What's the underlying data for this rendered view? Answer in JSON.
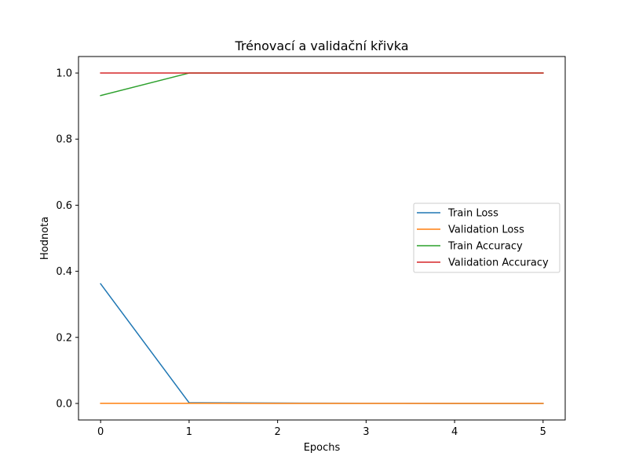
{
  "chart_data": {
    "type": "line",
    "title": "Trénovací a validační křivka",
    "xlabel": "Epochs",
    "ylabel": "Hodnota",
    "x": [
      0,
      1,
      2,
      3,
      4,
      5
    ],
    "xlim": [
      -0.25,
      5.25
    ],
    "ylim": [
      -0.05,
      1.05
    ],
    "xticks": [
      0,
      1,
      2,
      3,
      4,
      5
    ],
    "yticks": [
      0.0,
      0.2,
      0.4,
      0.6,
      0.8,
      1.0
    ],
    "xtick_labels": [
      "0",
      "1",
      "2",
      "3",
      "4",
      "5"
    ],
    "ytick_labels": [
      "0.0",
      "0.2",
      "0.4",
      "0.6",
      "0.8",
      "1.0"
    ],
    "grid": false,
    "legend_position": "center-right",
    "series": [
      {
        "name": "Train Loss",
        "color": "#1f77b4",
        "values": [
          0.362,
          0.002,
          0.001,
          0.0005,
          0.0003,
          0.0002
        ]
      },
      {
        "name": "Validation Loss",
        "color": "#ff7f0e",
        "values": [
          0.0005,
          0.0004,
          0.0003,
          0.0002,
          0.0002,
          0.0001
        ]
      },
      {
        "name": "Train Accuracy",
        "color": "#2ca02c",
        "values": [
          0.932,
          1.0,
          1.0,
          1.0,
          1.0,
          1.0
        ]
      },
      {
        "name": "Validation Accuracy",
        "color": "#d62728",
        "values": [
          1.0,
          1.0,
          1.0,
          1.0,
          1.0,
          1.0
        ]
      }
    ]
  }
}
